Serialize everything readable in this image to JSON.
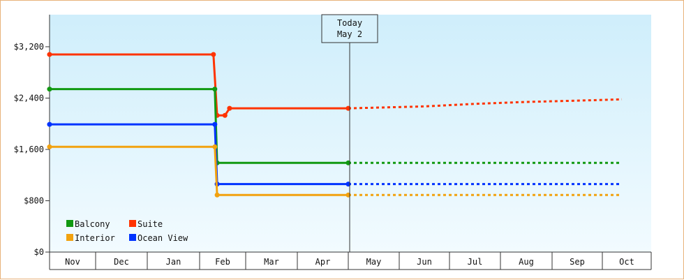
{
  "chart_data": {
    "type": "line",
    "step": true,
    "ylim": [
      0,
      3700
    ],
    "yticks": [
      {
        "value": 0,
        "label": "$0"
      },
      {
        "value": 800,
        "label": "$800"
      },
      {
        "value": 1600,
        "label": "$1,600"
      },
      {
        "value": 2400,
        "label": "$2,400"
      },
      {
        "value": 3200,
        "label": "$3,200"
      }
    ],
    "months": [
      "Nov",
      "Dec",
      "Jan",
      "Feb",
      "Mar",
      "Apr",
      "May",
      "Jun",
      "Jul",
      "Aug",
      "Sep",
      "Oct"
    ],
    "grid": false,
    "legend_position": "bottom-left",
    "today": {
      "line1": "Today",
      "line2": "May 2",
      "month_index": 6.0
    },
    "series": [
      {
        "name": "Suite",
        "color": "#ff3300",
        "points": [
          [
            -0.05,
            3080
          ],
          [
            3.3,
            3080
          ],
          [
            3.38,
            2130
          ],
          [
            3.55,
            2130
          ],
          [
            3.65,
            2240
          ],
          [
            6.0,
            2240
          ]
        ],
        "forecast": [
          [
            6.0,
            2240
          ],
          [
            7.5,
            2270
          ],
          [
            8.5,
            2310
          ],
          [
            9.5,
            2340
          ],
          [
            10.5,
            2360
          ],
          [
            11.4,
            2380
          ]
        ]
      },
      {
        "name": "Balcony",
        "color": "#119911",
        "points": [
          [
            -0.05,
            2540
          ],
          [
            3.33,
            2540
          ],
          [
            3.38,
            1390
          ],
          [
            6.0,
            1390
          ]
        ],
        "forecast": [
          [
            6.0,
            1390
          ],
          [
            11.4,
            1390
          ]
        ]
      },
      {
        "name": "Ocean View",
        "color": "#0033ff",
        "points": [
          [
            -0.05,
            1990
          ],
          [
            3.33,
            1990
          ],
          [
            3.38,
            1060
          ],
          [
            6.0,
            1060
          ]
        ],
        "forecast": [
          [
            6.0,
            1060
          ],
          [
            11.4,
            1060
          ]
        ]
      },
      {
        "name": "Interior",
        "color": "#f2a20f",
        "points": [
          [
            -0.05,
            1640
          ],
          [
            3.33,
            1640
          ],
          [
            3.38,
            890
          ],
          [
            6.0,
            890
          ]
        ],
        "forecast": [
          [
            6.0,
            890
          ],
          [
            11.4,
            890
          ]
        ]
      }
    ],
    "legend": [
      {
        "name": "Balcony",
        "color": "#119911"
      },
      {
        "name": "Suite",
        "color": "#ff3300"
      },
      {
        "name": "Interior",
        "color": "#f2a20f"
      },
      {
        "name": "Ocean View",
        "color": "#0033ff"
      }
    ]
  }
}
